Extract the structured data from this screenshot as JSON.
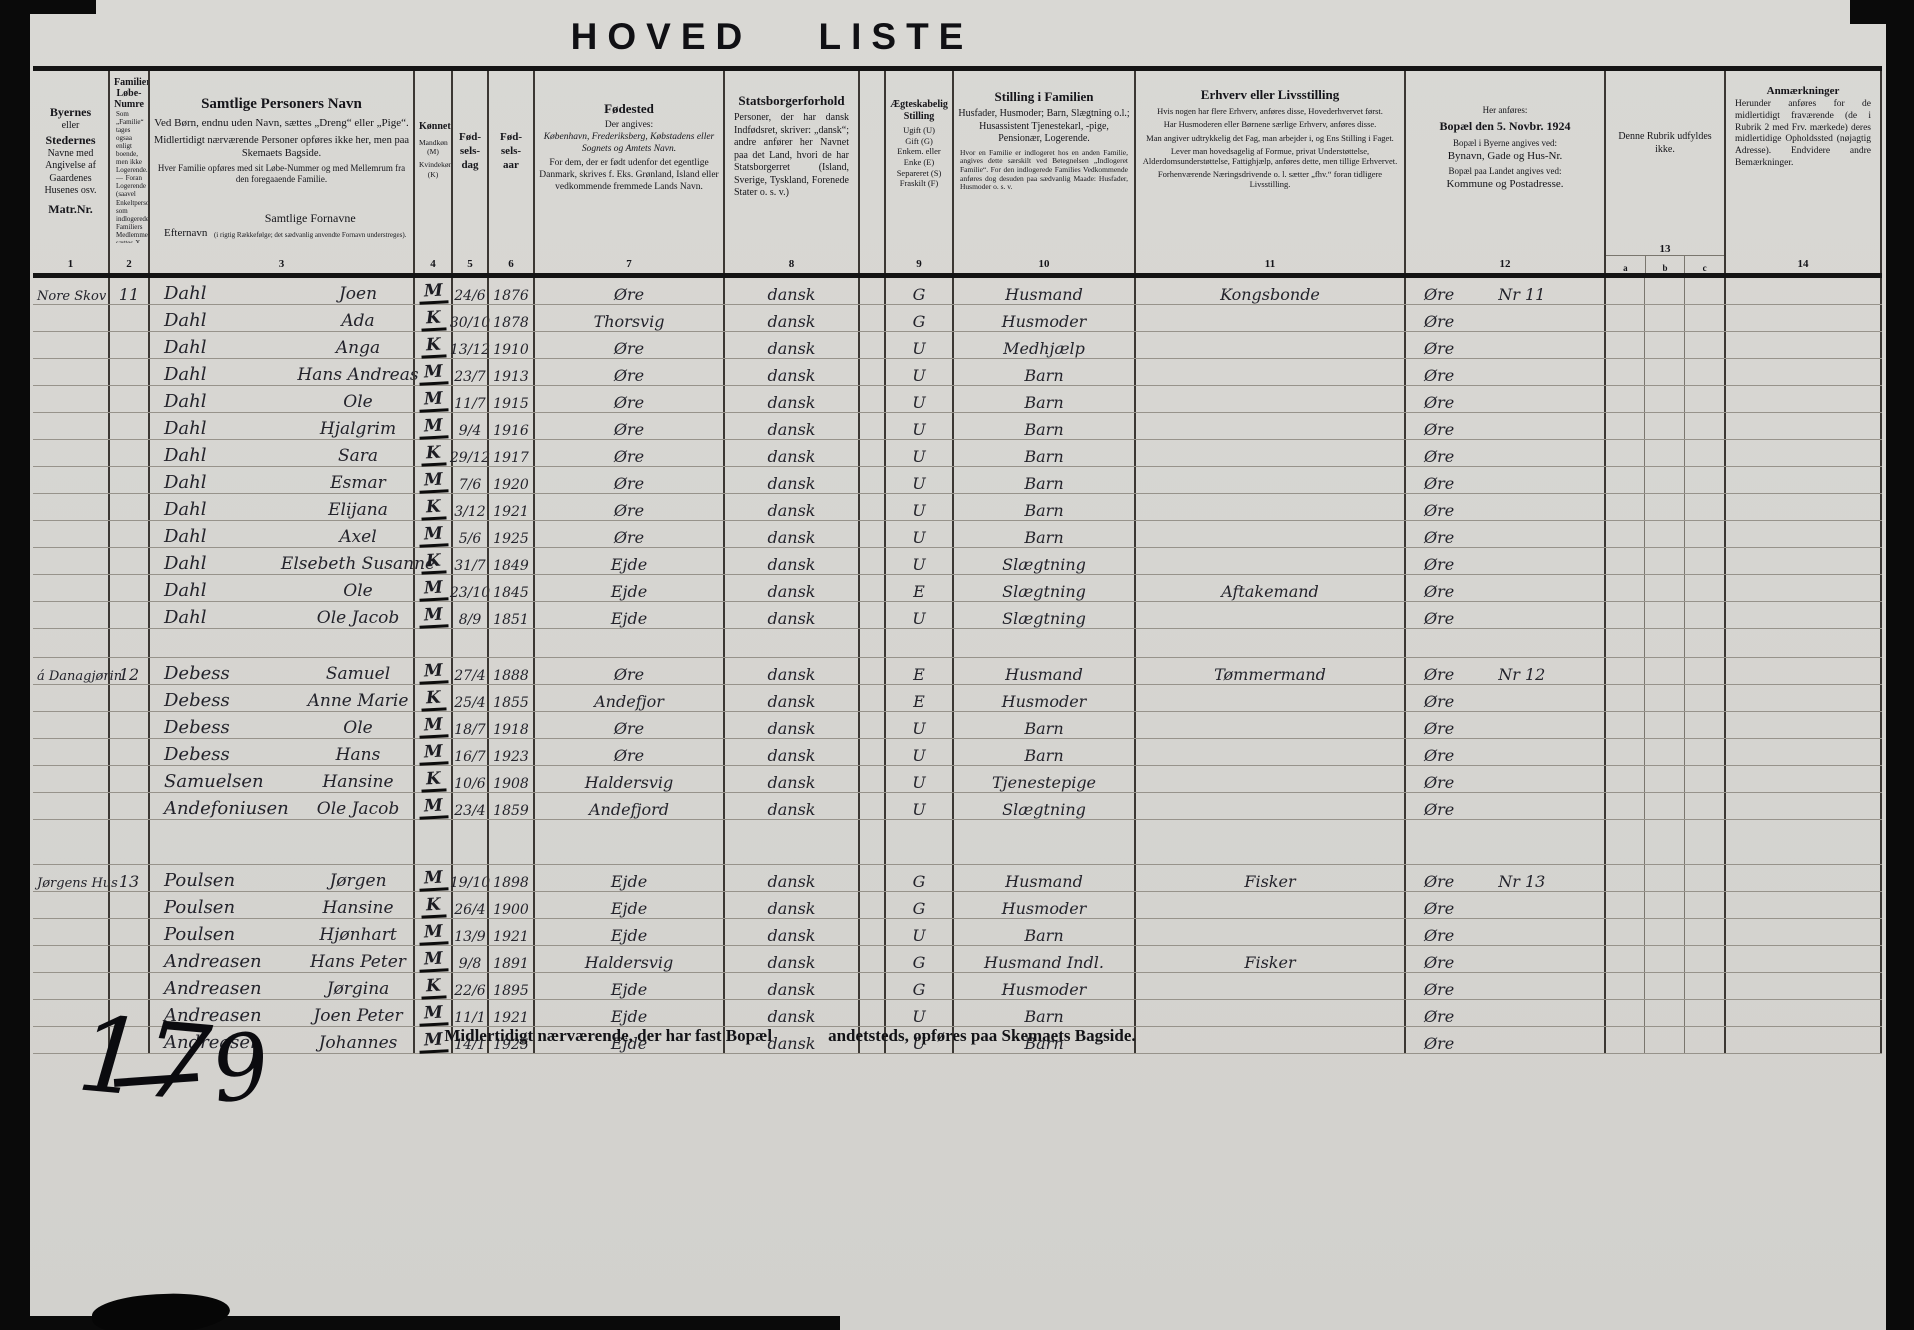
{
  "title": "HOVED  LISTE",
  "columns": {
    "c1": {
      "l1": "Byernes",
      "l2": "eller",
      "l3": "Stedernes",
      "l4": "Navne med",
      "l5": "Angivelse af",
      "l6": "Gaardenes",
      "l7": "Husenes osv.",
      "l8": "Matr.Nr."
    },
    "c2": {
      "title": "Familiernes Løbe-Numre",
      "note": "Som „Familie“ tages ogsaa enligt boende, men ikke Logerende. — Foran Logerende (saavel Enkeltpersoner som indlogerede Familiers Medlemmer) sættes X. Foran midlertidigt fraværende sættes Frv. (jfr. Rubr. 14)"
    },
    "c3": {
      "title": "Samtlige Personers Navn",
      "p1": "Ved Børn, endnu uden Navn, sættes „Dreng“ eller „Pige“.",
      "p2": "Midlertidigt nærværende Personer opføres ikke her, men paa Skemaets Bagside.",
      "p3": "Hver Familie opføres med sit Løbe-Nummer og med Mellemrum fra den foregaaende Familie.",
      "efternavn": "Efternavn",
      "fornavne": "Samtlige Fornavne",
      "fornavne_note": "(i rigtig Rækkefølge; det sædvanlig anvendte Fornavn understreges)."
    },
    "c4": {
      "title": "Kønnet",
      "m": "Mandkøn (M)",
      "k": "Kvindekøn (K)"
    },
    "c5": {
      "title": "Fød-sels-dag"
    },
    "c6": {
      "title": "Fød-sels-aar"
    },
    "c7": {
      "title": "Fødested",
      "n1": "Der angives:",
      "n2": "København, Frederiksberg, Købstadens eller Sognets og Amtets Navn.",
      "n3": "For dem, der er født udenfor det egentlige Danmark, skrives f. Eks. Grønland, Island eller vedkommende fremmede Lands Navn."
    },
    "c8": {
      "title": "Statsborgerforhold",
      "body": "Personer, der har dansk Indfødsret, skriver: „dansk“; andre anfører her Navnet paa det Land, hvori de har Statsborgerret (Island, Sverige, Tyskland, Forenede Stater o. s. v.)"
    },
    "c9": {
      "title": "Ægteskabelig Stilling",
      "o1": "Ugift (U)",
      "o2": "Gift (G)",
      "o3": "Enkem. eller Enke (E)",
      "o4": "Separeret (S)",
      "o5": "Fraskilt (F)"
    },
    "c10": {
      "title": "Stilling i Familien",
      "body": "Husfader, Husmoder; Barn, Slægtning o.l.; Husassistent Tjenestekarl, -pige, Pensionær, Logerende.",
      "note": "Hvor en Familie er indlogeret hos en anden Familie, angives dette særskilt ved Betegnelsen „Indlogeret Familie“. For den indlogerede Families Vedkommende anføres dog desuden paa sædvanlig Maade: Husfader, Husmoder o. s. v."
    },
    "c11": {
      "title": "Erhverv eller Livsstilling",
      "p1": "Hvis nogen har flere Erhverv, anføres disse, Hovederhvervet først.",
      "p2": "Har Husmoderen eller Børnene særlige Erhverv, anføres disse.",
      "p3": "Man angiver udtrykkelig det Fag, man arbejder i, og Ens Stilling i Faget.",
      "p4": "Lever man hovedsagelig af Formue, privat Understøttelse, Alderdomsunderstøttelse, Fattighjælp, anføres dette, men tillige Erhvervet.",
      "p5": "Forhenværende Næringsdrivende o. l. sætter „fhv.“ foran tidligere Livsstilling."
    },
    "c12": {
      "pre": "Her anføres:",
      "title": "Bopæl den 5. Novbr. 1924",
      "n1": "Bopæl i Byerne angives ved:",
      "n2": "Bynavn, Gade og Hus-Nr.",
      "n3": "Bopæl paa Landet angives ved:",
      "n4": "Kommune og Postadresse."
    },
    "c13": {
      "body": "Denne Rubrik udfyldes ikke."
    },
    "c14": {
      "title": "Anmærkninger",
      "body": "Herunder anføres for de midlertidigt fraværende (de i Rubrik 2 med Frv. mærkede) deres midlertidige Opholdssted (nøjagtig Adresse). Endvidere andre Bemærkninger."
    }
  },
  "numbers": {
    "n1": "1",
    "n2": "2",
    "n3": "3",
    "n4": "4",
    "n5": "5",
    "n6": "6",
    "n7": "7",
    "n8": "8",
    "n9": "9",
    "n10": "10",
    "n11": "11",
    "n12": "12",
    "n13": "13",
    "n14": "14",
    "a": "a",
    "b": "b",
    "c": "c"
  },
  "families": [
    {
      "place": "Nore Skov",
      "nr": "11",
      "members": [
        {
          "last": "Dahl",
          "first": "Joen",
          "sex": "M",
          "day": "24/6",
          "year": "1876",
          "born": "Øre",
          "citizen": "dansk",
          "marital": "G",
          "family": "Husmand",
          "occupation": "Kongsbonde",
          "residence": "Øre",
          "residence_nr": "Nr 11"
        },
        {
          "last": "Dahl",
          "first": "Ada",
          "sex": "K",
          "day": "30/10",
          "year": "1878",
          "born": "Thorsvig",
          "citizen": "dansk",
          "marital": "G",
          "family": "Husmoder",
          "occupation": "",
          "residence": "Øre",
          "residence_nr": ""
        },
        {
          "last": "Dahl",
          "first": "Anga",
          "sex": "K",
          "day": "13/12",
          "year": "1910",
          "born": "Øre",
          "citizen": "dansk",
          "marital": "U",
          "family": "Medhjælp",
          "occupation": "",
          "residence": "Øre",
          "residence_nr": ""
        },
        {
          "last": "Dahl",
          "first": "Hans Andreas",
          "sex": "M",
          "day": "23/7",
          "year": "1913",
          "born": "Øre",
          "citizen": "dansk",
          "marital": "U",
          "family": "Barn",
          "occupation": "",
          "residence": "Øre",
          "residence_nr": ""
        },
        {
          "last": "Dahl",
          "first": "Ole",
          "sex": "M",
          "day": "11/7",
          "year": "1915",
          "born": "Øre",
          "citizen": "dansk",
          "marital": "U",
          "family": "Barn",
          "occupation": "",
          "residence": "Øre",
          "residence_nr": ""
        },
        {
          "last": "Dahl",
          "first": "Hjalgrim",
          "sex": "M",
          "day": "9/4",
          "year": "1916",
          "born": "Øre",
          "citizen": "dansk",
          "marital": "U",
          "family": "Barn",
          "occupation": "",
          "residence": "Øre",
          "residence_nr": ""
        },
        {
          "last": "Dahl",
          "first": "Sara",
          "sex": "K",
          "day": "29/12",
          "year": "1917",
          "born": "Øre",
          "citizen": "dansk",
          "marital": "U",
          "family": "Barn",
          "occupation": "",
          "residence": "Øre",
          "residence_nr": ""
        },
        {
          "last": "Dahl",
          "first": "Esmar",
          "sex": "M",
          "day": "7/6",
          "year": "1920",
          "born": "Øre",
          "citizen": "dansk",
          "marital": "U",
          "family": "Barn",
          "occupation": "",
          "residence": "Øre",
          "residence_nr": ""
        },
        {
          "last": "Dahl",
          "first": "Elijana",
          "sex": "K",
          "day": "3/12",
          "year": "1921",
          "born": "Øre",
          "citizen": "dansk",
          "marital": "U",
          "family": "Barn",
          "occupation": "",
          "residence": "Øre",
          "residence_nr": ""
        },
        {
          "last": "Dahl",
          "first": "Axel",
          "sex": "M",
          "day": "5/6",
          "year": "1925",
          "born": "Øre",
          "citizen": "dansk",
          "marital": "U",
          "family": "Barn",
          "occupation": "",
          "residence": "Øre",
          "residence_nr": ""
        },
        {
          "last": "Dahl",
          "first": "Elsebeth Susanne",
          "sex": "K",
          "day": "31/7",
          "year": "1849",
          "born": "Ejde",
          "citizen": "dansk",
          "marital": "U",
          "family": "Slægtning",
          "occupation": "",
          "residence": "Øre",
          "residence_nr": ""
        },
        {
          "last": "Dahl",
          "first": "Ole",
          "sex": "M",
          "day": "23/10",
          "year": "1845",
          "born": "Ejde",
          "citizen": "dansk",
          "marital": "E",
          "family": "Slægtning",
          "occupation": "Aftakemand",
          "residence": "Øre",
          "residence_nr": ""
        },
        {
          "last": "Dahl",
          "first": "Ole Jacob",
          "sex": "M",
          "day": "8/9",
          "year": "1851",
          "born": "Ejde",
          "citizen": "dansk",
          "marital": "U",
          "family": "Slægtning",
          "occupation": "",
          "residence": "Øre",
          "residence_nr": ""
        }
      ]
    },
    {
      "place": "á Danagjørin",
      "nr": "12",
      "members": [
        {
          "last": "Debess",
          "first": "Samuel",
          "sex": "M",
          "day": "27/4",
          "year": "1888",
          "born": "Øre",
          "citizen": "dansk",
          "marital": "E",
          "family": "Husmand",
          "occupation": "Tømmermand",
          "residence": "Øre",
          "residence_nr": "Nr 12"
        },
        {
          "last": "Debess",
          "first": "Anne Marie",
          "sex": "K",
          "day": "25/4",
          "year": "1855",
          "born": "Andefjor",
          "citizen": "dansk",
          "marital": "E",
          "family": "Husmoder",
          "occupation": "",
          "residence": "Øre",
          "residence_nr": ""
        },
        {
          "last": "Debess",
          "first": "Ole",
          "sex": "M",
          "day": "18/7",
          "year": "1918",
          "born": "Øre",
          "citizen": "dansk",
          "marital": "U",
          "family": "Barn",
          "occupation": "",
          "residence": "Øre",
          "residence_nr": ""
        },
        {
          "last": "Debess",
          "first": "Hans",
          "sex": "M",
          "day": "16/7",
          "year": "1923",
          "born": "Øre",
          "citizen": "dansk",
          "marital": "U",
          "family": "Barn",
          "occupation": "",
          "residence": "Øre",
          "residence_nr": ""
        },
        {
          "last": "Samuelsen",
          "first": "Hansine",
          "sex": "K",
          "day": "10/6",
          "year": "1908",
          "born": "Haldersvig",
          "citizen": "dansk",
          "marital": "U",
          "family": "Tjenestepige",
          "occupation": "",
          "residence": "Øre",
          "residence_nr": ""
        },
        {
          "last": "Andefoniusen",
          "first": "Ole Jacob",
          "sex": "M",
          "day": "23/4",
          "year": "1859",
          "born": "Andefjord",
          "citizen": "dansk",
          "marital": "U",
          "family": "Slægtning",
          "occupation": "",
          "residence": "Øre",
          "residence_nr": ""
        }
      ]
    },
    {
      "place": "Jørgens Hus",
      "nr": "13",
      "members": [
        {
          "last": "Poulsen",
          "first": "Jørgen",
          "sex": "M",
          "day": "19/10",
          "year": "1898",
          "born": "Ejde",
          "citizen": "dansk",
          "marital": "G",
          "family": "Husmand",
          "occupation": "Fisker",
          "residence": "Øre",
          "residence_nr": "Nr 13"
        },
        {
          "last": "Poulsen",
          "first": "Hansine",
          "sex": "K",
          "day": "26/4",
          "year": "1900",
          "born": "Ejde",
          "citizen": "dansk",
          "marital": "G",
          "family": "Husmoder",
          "occupation": "",
          "residence": "Øre",
          "residence_nr": ""
        },
        {
          "last": "Poulsen",
          "first": "Hjønhart",
          "sex": "M",
          "day": "13/9",
          "year": "1921",
          "born": "Ejde",
          "citizen": "dansk",
          "marital": "U",
          "family": "Barn",
          "occupation": "",
          "residence": "Øre",
          "residence_nr": ""
        },
        {
          "last": "Andreasen",
          "first": "Hans Peter",
          "sex": "M",
          "day": "9/8",
          "year": "1891",
          "born": "Haldersvig",
          "citizen": "dansk",
          "marital": "G",
          "family": "Husmand Indl.",
          "occupation": "Fisker",
          "residence": "Øre",
          "residence_nr": ""
        },
        {
          "last": "Andreasen",
          "first": "Jørgina",
          "sex": "K",
          "day": "22/6",
          "year": "1895",
          "born": "Ejde",
          "citizen": "dansk",
          "marital": "G",
          "family": "Husmoder",
          "occupation": "",
          "residence": "Øre",
          "residence_nr": ""
        },
        {
          "last": "Andreasen",
          "first": "Joen Peter",
          "sex": "M",
          "day": "11/1",
          "year": "1921",
          "born": "Ejde",
          "citizen": "dansk",
          "marital": "U",
          "family": "Barn",
          "occupation": "",
          "residence": "Øre",
          "residence_nr": ""
        },
        {
          "last": "Andreasen",
          "first": "Johannes",
          "sex": "M",
          "day": "14/1",
          "year": "1925",
          "born": "Ejde",
          "citizen": "dansk",
          "marital": "U",
          "family": "Barn",
          "occupation": "",
          "residence": "Øre",
          "residence_nr": ""
        }
      ]
    }
  ],
  "footer": {
    "part1": "Midlertidigt nærværende, der har fast Bopæl",
    "part2": "andetsteds, opføres paa Skemaets Bagside."
  },
  "marks": {
    "m1": "17",
    "m2": "9"
  }
}
